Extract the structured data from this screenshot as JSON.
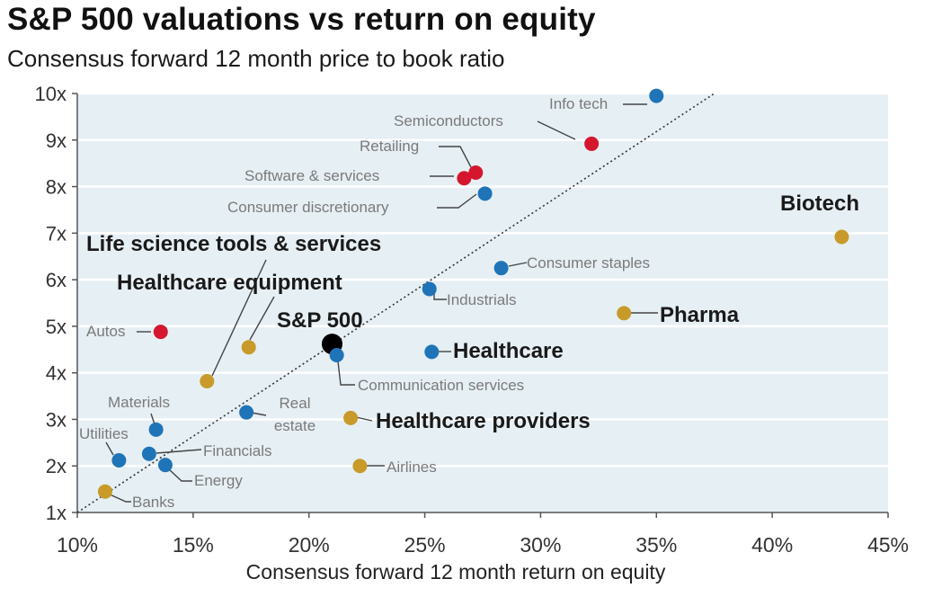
{
  "title": "S&P 500 valuations vs return on equity",
  "subtitle": "Consensus forward 12 month price to book ratio",
  "colors": {
    "plot_bg": "#e6eff4",
    "grid": "#ffffff",
    "blue": "#1f74b8",
    "red": "#d4172f",
    "gold": "#c79a2a",
    "black": "#000000",
    "label_gray": "#7a7a7a",
    "label_bold": "#1a1a1a"
  },
  "chart_data": {
    "type": "scatter",
    "title": "S&P 500 valuations vs return on equity",
    "subtitle": "Consensus forward 12 month price to book ratio",
    "xlabel": "Consensus forward 12 month return on equity",
    "ylabel": "Consensus forward 12 month price to book ratio",
    "xlim": [
      0.1,
      0.45
    ],
    "ylim": [
      1,
      10
    ],
    "xticks": [
      0.1,
      0.15,
      0.2,
      0.25,
      0.3,
      0.35,
      0.4,
      0.45
    ],
    "xtick_labels": [
      "10%",
      "15%",
      "20%",
      "25%",
      "30%",
      "35%",
      "40%",
      "45%"
    ],
    "yticks": [
      1,
      2,
      3,
      4,
      5,
      6,
      7,
      8,
      9,
      10
    ],
    "ytick_labels": [
      "1x",
      "2x",
      "3x",
      "4x",
      "5x",
      "6x",
      "7x",
      "8x",
      "9x",
      "10x"
    ],
    "grid": "horizontal",
    "trendline": {
      "style": "dotted",
      "from": [
        0.1,
        1.0
      ],
      "to": [
        0.375,
        10.0
      ]
    },
    "points": [
      {
        "label": "Info tech",
        "x": 0.35,
        "y": 9.95,
        "color": "blue",
        "style": "normal"
      },
      {
        "label": "Semiconductors",
        "x": 0.322,
        "y": 8.92,
        "color": "red",
        "style": "normal"
      },
      {
        "label": "Retailing",
        "x": 0.272,
        "y": 8.3,
        "color": "red",
        "style": "normal"
      },
      {
        "label": "Software & services",
        "x": 0.267,
        "y": 8.18,
        "color": "red",
        "style": "normal"
      },
      {
        "label": "Consumer discretionary",
        "x": 0.276,
        "y": 7.85,
        "color": "blue",
        "style": "normal"
      },
      {
        "label": "Biotech",
        "x": 0.43,
        "y": 6.92,
        "color": "gold",
        "style": "bold"
      },
      {
        "label": "Consumer staples",
        "x": 0.283,
        "y": 6.25,
        "color": "blue",
        "style": "normal"
      },
      {
        "label": "Industrials",
        "x": 0.252,
        "y": 5.8,
        "color": "blue",
        "style": "normal"
      },
      {
        "label": "Pharma",
        "x": 0.336,
        "y": 5.28,
        "color": "gold",
        "style": "bold"
      },
      {
        "label": "Autos",
        "x": 0.136,
        "y": 4.88,
        "color": "red",
        "style": "normal"
      },
      {
        "label": "Healthcare equipment",
        "x": 0.174,
        "y": 4.55,
        "color": "gold",
        "style": "bold"
      },
      {
        "label": "S&P 500",
        "x": 0.21,
        "y": 4.62,
        "color": "black",
        "style": "bold"
      },
      {
        "label": "Healthcare",
        "x": 0.253,
        "y": 4.45,
        "color": "blue",
        "style": "bold"
      },
      {
        "label": "Communication services",
        "x": 0.212,
        "y": 4.38,
        "color": "blue",
        "style": "normal"
      },
      {
        "label": "Life science tools & services",
        "x": 0.156,
        "y": 3.82,
        "color": "gold",
        "style": "bold"
      },
      {
        "label": "Real estate",
        "x": 0.173,
        "y": 3.15,
        "color": "blue",
        "style": "normal"
      },
      {
        "label": "Healthcare providers",
        "x": 0.218,
        "y": 3.03,
        "color": "gold",
        "style": "bold"
      },
      {
        "label": "Materials",
        "x": 0.134,
        "y": 2.78,
        "color": "blue",
        "style": "normal"
      },
      {
        "label": "Financials",
        "x": 0.131,
        "y": 2.26,
        "color": "blue",
        "style": "normal"
      },
      {
        "label": "Utilities",
        "x": 0.118,
        "y": 2.12,
        "color": "blue",
        "style": "normal"
      },
      {
        "label": "Energy",
        "x": 0.138,
        "y": 2.02,
        "color": "blue",
        "style": "normal"
      },
      {
        "label": "Airlines",
        "x": 0.222,
        "y": 2.0,
        "color": "gold",
        "style": "normal"
      },
      {
        "label": "Banks",
        "x": 0.112,
        "y": 1.45,
        "color": "gold",
        "style": "normal"
      }
    ]
  }
}
